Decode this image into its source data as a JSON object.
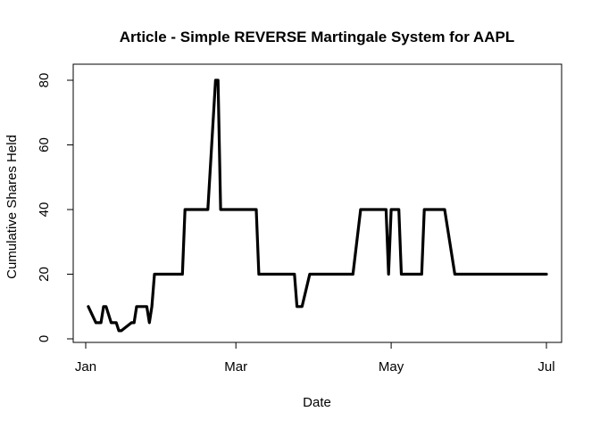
{
  "chart_data": {
    "type": "line",
    "title": "Article - Simple REVERSE Martingale System for AAPL",
    "xlabel": "Date",
    "ylabel": "Cumulative Shares Held",
    "xlim": [
      "2013-01-01",
      "2013-07-01"
    ],
    "ylim": [
      0,
      80
    ],
    "x_ticks": [
      {
        "date": "2013-01-01",
        "label": "Jan"
      },
      {
        "date": "2013-03-01",
        "label": "Mar"
      },
      {
        "date": "2013-05-01",
        "label": "May"
      },
      {
        "date": "2013-07-01",
        "label": "Jul"
      }
    ],
    "y_ticks": [
      0,
      20,
      40,
      60,
      80
    ],
    "grid": false,
    "legend": "none",
    "series": [
      {
        "color": "#000000",
        "points": [
          {
            "x": "2013-01-02",
            "y": 10
          },
          {
            "x": "2013-01-05",
            "y": 5
          },
          {
            "x": "2013-01-07",
            "y": 5
          },
          {
            "x": "2013-01-08",
            "y": 10
          },
          {
            "x": "2013-01-09",
            "y": 10
          },
          {
            "x": "2013-01-11",
            "y": 5
          },
          {
            "x": "2013-01-13",
            "y": 5
          },
          {
            "x": "2013-01-14",
            "y": 2.5
          },
          {
            "x": "2013-01-15",
            "y": 2.5
          },
          {
            "x": "2013-01-19",
            "y": 5
          },
          {
            "x": "2013-01-20",
            "y": 5
          },
          {
            "x": "2013-01-21",
            "y": 10
          },
          {
            "x": "2013-01-25",
            "y": 10
          },
          {
            "x": "2013-01-26",
            "y": 5
          },
          {
            "x": "2013-01-27",
            "y": 10
          },
          {
            "x": "2013-01-28",
            "y": 20
          },
          {
            "x": "2013-02-08",
            "y": 20
          },
          {
            "x": "2013-02-09",
            "y": 40
          },
          {
            "x": "2013-02-18",
            "y": 40
          },
          {
            "x": "2013-02-21",
            "y": 80
          },
          {
            "x": "2013-02-22",
            "y": 80
          },
          {
            "x": "2013-02-23",
            "y": 40
          },
          {
            "x": "2013-03-09",
            "y": 40
          },
          {
            "x": "2013-03-10",
            "y": 20
          },
          {
            "x": "2013-03-24",
            "y": 20
          },
          {
            "x": "2013-03-25",
            "y": 10
          },
          {
            "x": "2013-03-27",
            "y": 10
          },
          {
            "x": "2013-03-30",
            "y": 20
          },
          {
            "x": "2013-04-16",
            "y": 20
          },
          {
            "x": "2013-04-19",
            "y": 40
          },
          {
            "x": "2013-04-29",
            "y": 40
          },
          {
            "x": "2013-04-30",
            "y": 20
          },
          {
            "x": "2013-05-01",
            "y": 40
          },
          {
            "x": "2013-05-04",
            "y": 40
          },
          {
            "x": "2013-05-05",
            "y": 20
          },
          {
            "x": "2013-05-13",
            "y": 20
          },
          {
            "x": "2013-05-14",
            "y": 40
          },
          {
            "x": "2013-05-22",
            "y": 40
          },
          {
            "x": "2013-05-26",
            "y": 20
          },
          {
            "x": "2013-07-01",
            "y": 20
          }
        ]
      }
    ]
  }
}
